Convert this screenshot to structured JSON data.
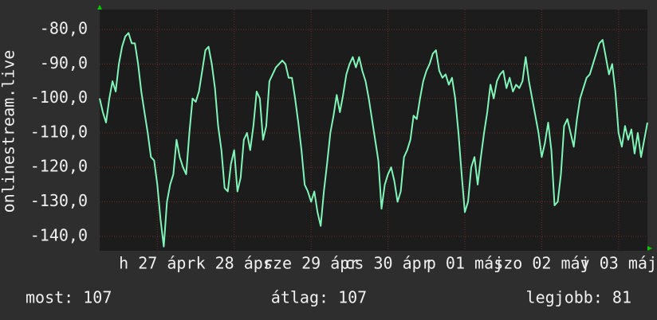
{
  "chart_data": {
    "type": "line",
    "ylabel": "onlinestream.live",
    "xlim": [
      0,
      171
    ],
    "xticks": [
      {
        "value": 18,
        "label": "h 27 ápr"
      },
      {
        "value": 42,
        "label": "k 28 ápr"
      },
      {
        "value": 66,
        "label": "sze 29 ápr"
      },
      {
        "value": 90,
        "label": "cs 30 ápr"
      },
      {
        "value": 114,
        "label": "p 01 máj"
      },
      {
        "value": 138,
        "label": "szo 02 máj"
      },
      {
        "value": 162,
        "label": "v 03 máj"
      }
    ],
    "ylim": [
      -144.2,
      -74.2
    ],
    "yticks": [
      {
        "value": -80,
        "label": "-80,0"
      },
      {
        "value": -90,
        "label": "-90,0"
      },
      {
        "value": -100,
        "label": "-100,0"
      },
      {
        "value": -110,
        "label": "-110,0"
      },
      {
        "value": -120,
        "label": "-120,0"
      },
      {
        "value": -130,
        "label": "-130,0"
      },
      {
        "value": -140,
        "label": "-140,0"
      }
    ],
    "grid": true,
    "series": [
      {
        "color": "#80f5b8",
        "values": [
          -100,
          -104,
          -107,
          -100,
          -95,
          -98,
          -90,
          -85,
          -82,
          -81,
          -84,
          -84,
          -90,
          -98,
          -104,
          -110,
          -117,
          -118,
          -125,
          -135,
          -143,
          -130,
          -125,
          -122,
          -112,
          -117,
          -120,
          -122,
          -110,
          -100,
          -101,
          -98,
          -92,
          -86,
          -85,
          -90,
          -97,
          -108,
          -115,
          -126,
          -127,
          -119,
          -115,
          -127,
          -123,
          -112,
          -110,
          -115,
          -108,
          -98,
          -100,
          -112,
          -108,
          -95,
          -93,
          -91,
          -90,
          -89,
          -90,
          -94,
          -94,
          -100,
          -107,
          -115,
          -125,
          -127,
          -130,
          -127,
          -133,
          -137,
          -127,
          -119,
          -110,
          -105,
          -99,
          -104,
          -99,
          -93,
          -90,
          -88,
          -91,
          -88,
          -92,
          -95,
          -100,
          -106,
          -112,
          -118,
          -132,
          -125,
          -122,
          -120,
          -124,
          -130,
          -127,
          -117,
          -115,
          -112,
          -105,
          -106,
          -100,
          -95,
          -92,
          -90,
          -87,
          -86,
          -92,
          -94,
          -93,
          -96,
          -94,
          -100,
          -110,
          -122,
          -133,
          -130,
          -120,
          -117,
          -125,
          -117,
          -110,
          -104,
          -96,
          -100,
          -95,
          -93,
          -92,
          -97,
          -94,
          -98,
          -96,
          -97,
          -95,
          -88,
          -95,
          -100,
          -105,
          -110,
          -117,
          -113,
          -107,
          -115,
          -131,
          -130,
          -122,
          -108,
          -106,
          -110,
          -114,
          -106,
          -100,
          -97,
          -94,
          -93,
          -90,
          -87,
          -84,
          -83,
          -88,
          -93,
          -90,
          -98,
          -110,
          -114,
          -108,
          -112,
          -109,
          -116,
          -110,
          -117,
          -112,
          -107
        ]
      }
    ],
    "stats": [
      "most: 107",
      "átlag: 107",
      "legjobb: 81"
    ]
  }
}
